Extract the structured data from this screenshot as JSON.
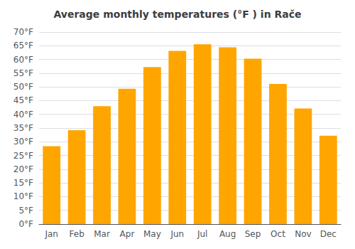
{
  "chart_data": {
    "type": "bar",
    "title": "Average monthly temperatures (°F ) in Rače",
    "categories": [
      "Jan",
      "Feb",
      "Mar",
      "Apr",
      "May",
      "Jun",
      "Jul",
      "Aug",
      "Sep",
      "Oct",
      "Nov",
      "Dec"
    ],
    "values": [
      28.4,
      34.2,
      43.0,
      49.3,
      57.2,
      63.1,
      65.5,
      64.4,
      60.3,
      51.1,
      42.1,
      32.2
    ],
    "color": "#FFA500",
    "ylim": [
      0,
      70
    ],
    "yticks": [
      {
        "value": 0,
        "label": "0°F"
      },
      {
        "value": 5,
        "label": "5°F"
      },
      {
        "value": 10,
        "label": "10°F"
      },
      {
        "value": 15,
        "label": "15°F"
      },
      {
        "value": 20,
        "label": "20°F"
      },
      {
        "value": 25,
        "label": "25°F"
      },
      {
        "value": 30,
        "label": "30°F"
      },
      {
        "value": 35,
        "label": "35°F"
      },
      {
        "value": 40,
        "label": "40°F"
      },
      {
        "value": 45,
        "label": "45°F"
      },
      {
        "value": 50,
        "label": "50°F"
      },
      {
        "value": 55,
        "label": "55°F"
      },
      {
        "value": 60,
        "label": "60°F"
      },
      {
        "value": 65,
        "label": "65°F"
      },
      {
        "value": 70,
        "label": "70°F"
      }
    ],
    "grid": true
  }
}
